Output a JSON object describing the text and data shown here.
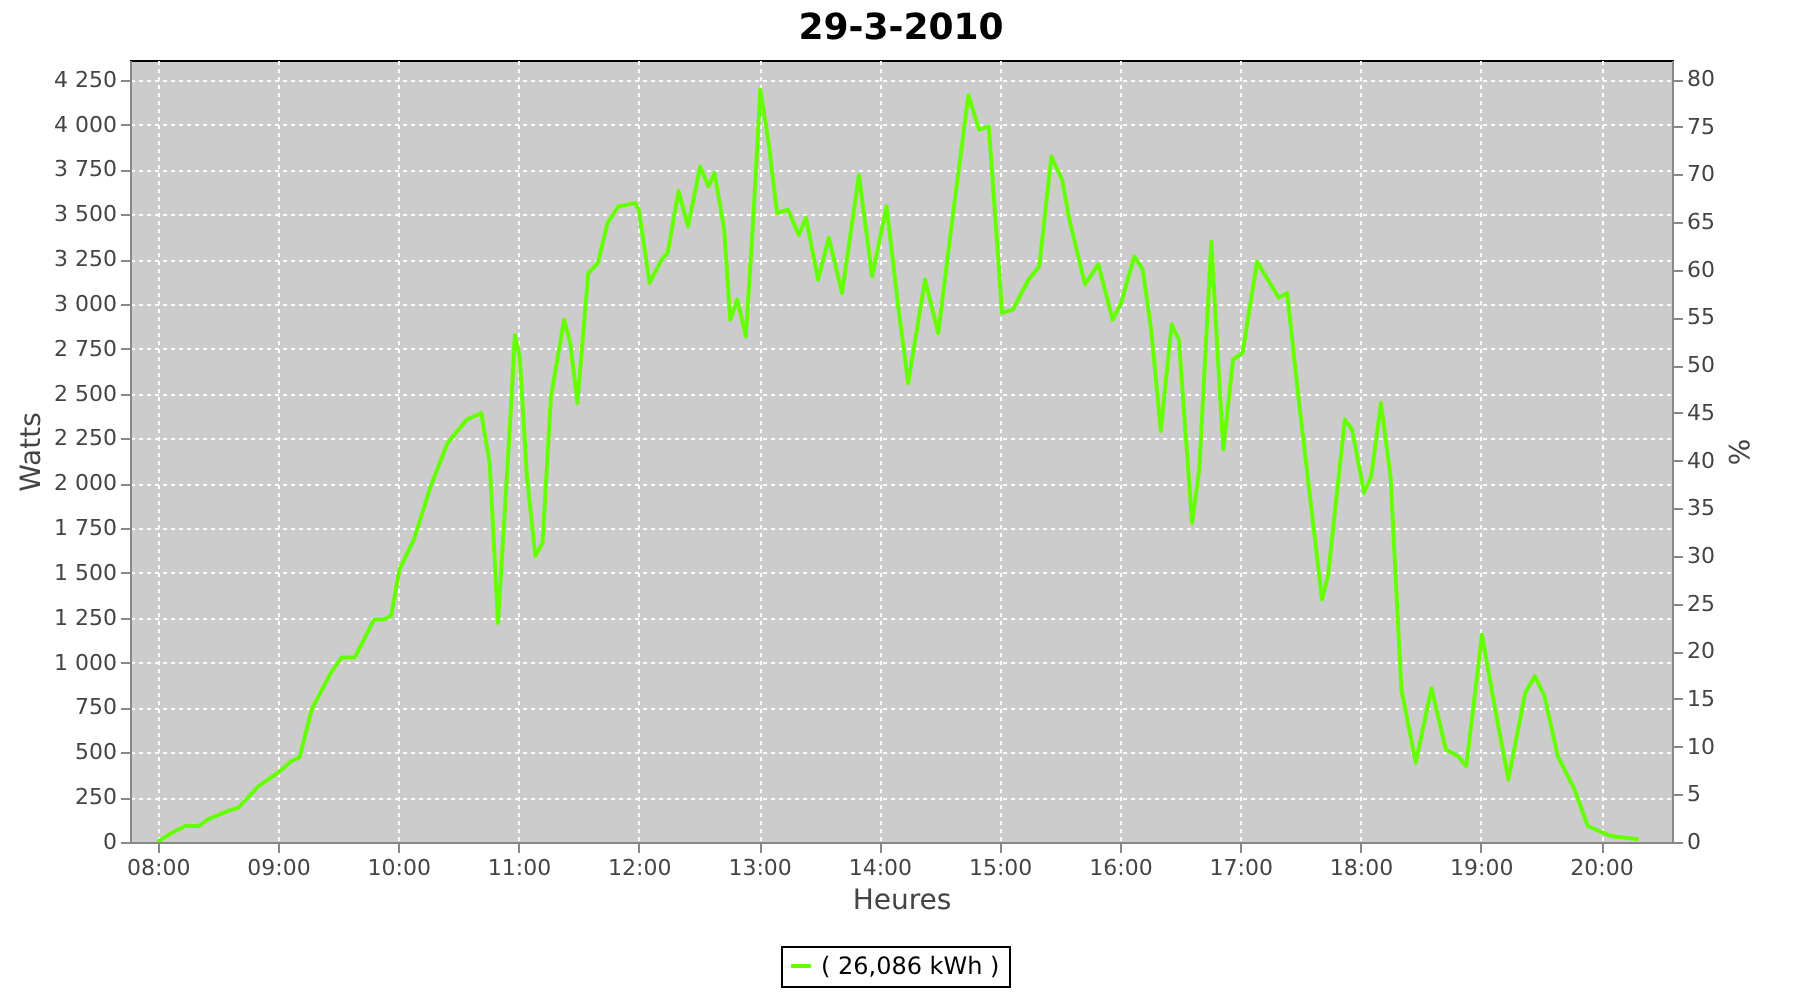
{
  "chart_data": {
    "type": "line",
    "title": "29-3-2010",
    "xlabel": "Heures",
    "ylabel": "Watts",
    "y2label": "%",
    "xlim": [
      7.77,
      20.59
    ],
    "ylim": [
      0,
      4360
    ],
    "y2lim": [
      0,
      82
    ],
    "xticks": [
      {
        "value": 8,
        "label": "08:00"
      },
      {
        "value": 9,
        "label": "09:00"
      },
      {
        "value": 10,
        "label": "10:00"
      },
      {
        "value": 11,
        "label": "11:00"
      },
      {
        "value": 12,
        "label": "12:00"
      },
      {
        "value": 13,
        "label": "13:00"
      },
      {
        "value": 14,
        "label": "14:00"
      },
      {
        "value": 15,
        "label": "15:00"
      },
      {
        "value": 16,
        "label": "16:00"
      },
      {
        "value": 17,
        "label": "17:00"
      },
      {
        "value": 18,
        "label": "18:00"
      },
      {
        "value": 19,
        "label": "19:00"
      },
      {
        "value": 20,
        "label": "20:00"
      }
    ],
    "yticks": [
      0,
      250,
      500,
      750,
      {
        "value": 1000,
        "label": "1 000"
      },
      {
        "value": 1250,
        "label": "1 250"
      },
      {
        "value": 1500,
        "label": "1 500"
      },
      {
        "value": 1750,
        "label": "1 750"
      },
      {
        "value": 2000,
        "label": "2 000"
      },
      {
        "value": 2250,
        "label": "2 250"
      },
      {
        "value": 2500,
        "label": "2 500"
      },
      {
        "value": 2750,
        "label": "2 750"
      },
      {
        "value": 3000,
        "label": "3 000"
      },
      {
        "value": 3250,
        "label": "3 250"
      },
      {
        "value": 3500,
        "label": "3 500"
      },
      {
        "value": 3750,
        "label": "3 750"
      },
      {
        "value": 4000,
        "label": "4 000"
      },
      {
        "value": 4250,
        "label": "4 250"
      }
    ],
    "y2ticks": [
      0,
      5,
      10,
      15,
      20,
      25,
      30,
      35,
      40,
      45,
      50,
      55,
      60,
      65,
      70,
      75,
      80
    ],
    "grid": true,
    "legend": "bottom",
    "series": [
      {
        "name": "( 26,086 kWh )",
        "color": "#66ff00",
        "x": [
          8.0,
          8.12,
          8.23,
          8.34,
          8.42,
          8.59,
          8.67,
          8.84,
          9.0,
          9.11,
          9.18,
          9.28,
          9.44,
          9.53,
          9.64,
          9.8,
          9.88,
          9.94,
          10.01,
          10.13,
          10.27,
          10.41,
          10.57,
          10.69,
          10.76,
          10.83,
          10.93,
          10.97,
          11.01,
          11.07,
          11.14,
          11.2,
          11.27,
          11.38,
          11.43,
          11.49,
          11.58,
          11.66,
          11.74,
          11.83,
          11.97,
          12.0,
          12.09,
          12.19,
          12.24,
          12.33,
          12.41,
          12.51,
          12.58,
          12.63,
          12.71,
          12.76,
          12.82,
          12.89,
          12.95,
          13.01,
          13.08,
          13.15,
          13.24,
          13.33,
          13.39,
          13.49,
          13.58,
          13.69,
          13.83,
          13.94,
          14.06,
          14.16,
          14.24,
          14.38,
          14.49,
          14.61,
          14.74,
          14.83,
          14.91,
          15.02,
          15.11,
          15.24,
          15.33,
          15.43,
          15.52,
          15.58,
          15.71,
          15.82,
          15.94,
          16.01,
          16.12,
          16.19,
          16.26,
          16.34,
          16.43,
          16.49,
          16.6,
          16.66,
          16.76,
          16.82,
          16.86,
          16.94,
          17.02,
          17.14,
          17.32,
          17.39,
          17.49,
          17.68,
          17.73,
          17.87,
          17.93,
          18.03,
          18.09,
          18.17,
          18.25,
          18.34,
          18.46,
          18.59,
          18.71,
          18.81,
          18.88,
          19.01,
          19.12,
          19.23,
          19.37,
          19.45,
          19.53,
          19.64,
          19.78,
          19.89,
          20.08,
          20.31
        ],
        "values": [
          0,
          52,
          89,
          89,
          126,
          175,
          190,
          312,
          386,
          450,
          472,
          739,
          943,
          1029,
          1029,
          1241,
          1241,
          1259,
          1519,
          1686,
          1984,
          2225,
          2355,
          2392,
          2114,
          1222,
          2337,
          2827,
          2708,
          2039,
          1594,
          1668,
          2485,
          2912,
          2782,
          2448,
          3172,
          3228,
          3451,
          3544,
          3562,
          3525,
          3117,
          3247,
          3284,
          3629,
          3432,
          3767,
          3655,
          3730,
          3414,
          2912,
          3024,
          2819,
          3451,
          4194,
          3897,
          3507,
          3525,
          3384,
          3481,
          3135,
          3369,
          3061,
          3718,
          3154,
          3544,
          2968,
          2559,
          3135,
          2838,
          3488,
          4164,
          3971,
          3990,
          2950,
          2968,
          3135,
          3210,
          3822,
          3692,
          3470,
          3109,
          3221,
          2912,
          3005,
          3265,
          3191,
          2856,
          2292,
          2886,
          2801,
          1779,
          2077,
          3347,
          2634,
          2188,
          2689,
          2727,
          3236,
          3035,
          3061,
          2448,
          1352,
          1482,
          2355,
          2300,
          1947,
          2039,
          2448,
          2039,
          851,
          442,
          858,
          516,
          479,
          423,
          1155,
          739,
          349,
          832,
          925,
          814,
          479,
          293,
          89,
          33,
          15
        ]
      }
    ]
  }
}
